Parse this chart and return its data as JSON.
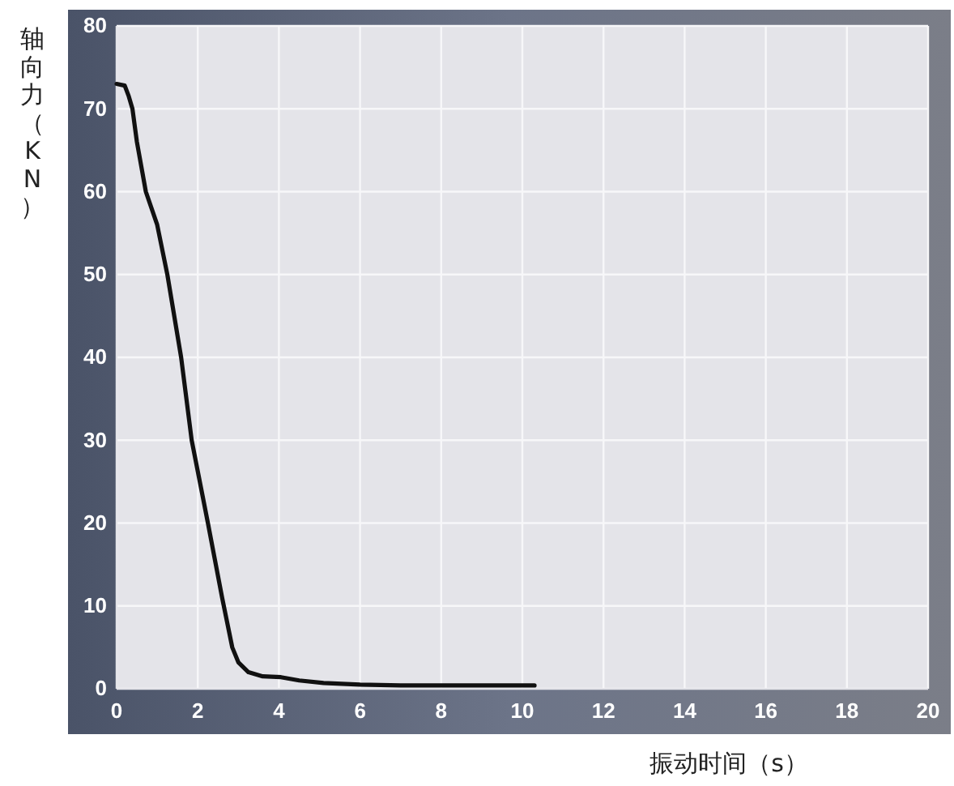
{
  "chart_data": {
    "type": "line",
    "xlabel": "振动时间（s）",
    "ylabel": "轴向力（KN）",
    "series": [
      {
        "color": "#111111",
        "x": [
          0,
          0.2,
          0.3,
          0.39,
          0.5,
          0.72,
          1.0,
          1.25,
          1.59,
          1.85,
          2.25,
          2.6,
          2.85,
          3.0,
          3.25,
          3.6,
          4.05,
          4.5,
          5.1,
          6,
          7,
          8,
          9,
          10.3
        ],
        "values": [
          73,
          72.8,
          71.5,
          70,
          66,
          60,
          56,
          50,
          40,
          30,
          20,
          11,
          5,
          3.2,
          2,
          1.5,
          1.4,
          1.0,
          0.7,
          0.5,
          0.4,
          0.4,
          0.4,
          0.4
        ]
      }
    ],
    "xlim": [
      0,
      20
    ],
    "xticks": [
      0,
      2,
      4,
      6,
      8,
      10,
      12,
      14,
      16,
      18,
      20
    ],
    "ylim": [
      0,
      80
    ],
    "yticks": [
      0,
      10,
      20,
      30,
      40,
      50,
      60,
      70,
      80
    ],
    "grid": true,
    "marker": "none",
    "line_style": "solid"
  }
}
